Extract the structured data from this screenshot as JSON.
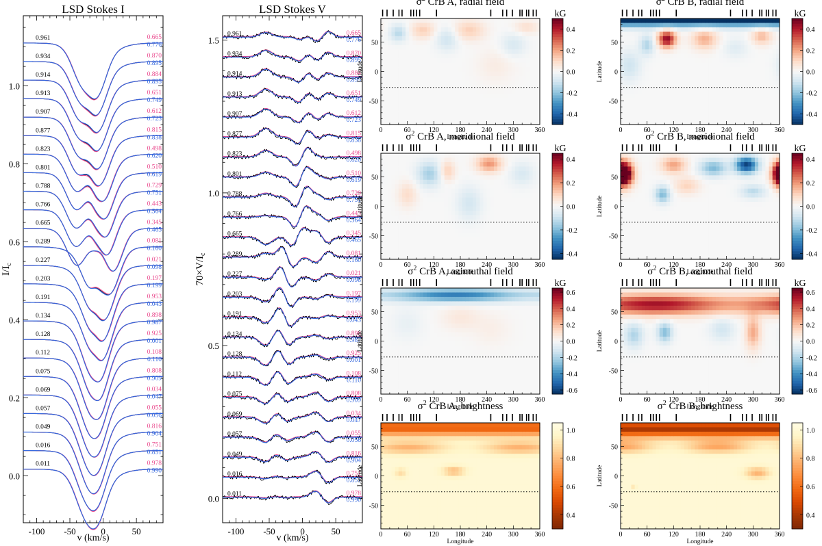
{
  "figure": {
    "description_free": true
  },
  "chart_data": [
    {
      "id": "stokes_i",
      "type": "line",
      "title": "LSD Stokes I",
      "xlabel": "v (km/s)",
      "ylabel": "I/I",
      "ylabel_sub": "c",
      "xlim": [
        -120,
        90
      ],
      "ylim": [
        -0.12,
        1.18
      ],
      "xticks": [
        -100,
        -50,
        0,
        50
      ],
      "yticks": [
        0.0,
        0.2,
        0.4,
        0.6,
        0.8,
        1.0
      ],
      "ytick_labels": [
        "0.0",
        "0.2",
        "0.4",
        "0.6",
        "0.8",
        "1.0"
      ],
      "series_colors": {
        "observed": "#000000",
        "model_a": "#ea4a8e",
        "model_b": "#3366dd"
      }
    },
    {
      "id": "stokes_v",
      "type": "line",
      "title": "LSD Stokes V",
      "xlabel": "v (km/s)",
      "ylabel": "70×V/I",
      "ylabel_sub": "c",
      "xlim": [
        -120,
        90
      ],
      "ylim": [
        -0.08,
        1.58
      ],
      "xticks": [
        -100,
        -50,
        0,
        50
      ],
      "yticks": [
        0.0,
        0.5,
        1.0,
        1.5
      ],
      "ytick_labels": [
        "0.0",
        "0.5",
        "1.0",
        "1.5"
      ]
    }
  ],
  "phases": {
    "left": [
      "0.961",
      "0.934",
      "0.914",
      "0.913",
      "0.907",
      "0.877",
      "0.823",
      "0.801",
      "0.788",
      "0.766",
      "0.665",
      "0.289",
      "0.227",
      "0.203",
      "0.191",
      "0.134",
      "0.128",
      "0.112",
      "0.075",
      "0.069",
      "0.057",
      "0.049",
      "0.016",
      "0.011"
    ],
    "pink": [
      "0.665",
      "0.870",
      "0.884",
      "0.651",
      "0.612",
      "0.815",
      "0.498",
      "0.510",
      "0.729",
      "0.443",
      "0.345",
      "0.081",
      "0.021",
      "0.197",
      "0.953",
      "0.898",
      "0.925",
      "0.108",
      "0.808",
      "0.034",
      "0.055",
      "0.816",
      "0.751",
      "0.978"
    ],
    "blue": [
      "0.776",
      "0.895",
      "0.895",
      "0.749",
      "0.723",
      "0.838",
      "0.620",
      "0.619",
      "0.751",
      "0.564",
      "0.465",
      "0.160",
      "0.098",
      "0.199",
      "0.043",
      "0.987",
      "0.001",
      "0.110",
      "0.909",
      "0.047",
      "0.056",
      "0.904",
      "0.851",
      "0.990"
    ]
  },
  "maps": [
    {
      "id": "a_radial",
      "title_star": "CrB A, radial field",
      "unit": "kG",
      "cbar": [
        -0.5,
        0.5
      ],
      "cbar_ticks": [
        "-0.4",
        "-0.2",
        "0.0",
        "0.2",
        "0.4"
      ],
      "cbar_vals": [
        -0.4,
        -0.2,
        0.0,
        0.2,
        0.4
      ],
      "cmap": "rdbu"
    },
    {
      "id": "b_radial",
      "title_star": "CrB B, radial field",
      "unit": "kG",
      "cbar": [
        -0.5,
        0.5
      ],
      "cbar_ticks": [
        "-0.4",
        "-0.2",
        "0.0",
        "0.2",
        "0.4"
      ],
      "cbar_vals": [
        -0.4,
        -0.2,
        0.0,
        0.2,
        0.4
      ],
      "cmap": "rdbu"
    },
    {
      "id": "a_meridional",
      "title_star": "CrB A, meridional field",
      "unit": "kG",
      "cbar": [
        -0.45,
        0.45
      ],
      "cbar_ticks": [
        "-0.4",
        "-0.2",
        "0.0",
        "0.2",
        "0.4"
      ],
      "cbar_vals": [
        -0.4,
        -0.2,
        0.0,
        0.2,
        0.4
      ],
      "cmap": "rdbu"
    },
    {
      "id": "b_meridional",
      "title_star": "CrB B, meridional field",
      "unit": "kG",
      "cbar": [
        -0.45,
        0.45
      ],
      "cbar_ticks": [
        "-0.4",
        "-0.2",
        "0.0",
        "0.2",
        "0.4"
      ],
      "cbar_vals": [
        -0.4,
        -0.2,
        0.0,
        0.2,
        0.4
      ],
      "cmap": "rdbu"
    },
    {
      "id": "a_azimuthal",
      "title_star": "CrB A, azimuthal field",
      "unit": "kG",
      "cbar": [
        -0.65,
        0.65
      ],
      "cbar_ticks": [
        "-0.6",
        "-0.4",
        "-0.2",
        "0.0",
        "0.2",
        "0.4",
        "0.6"
      ],
      "cbar_vals": [
        -0.6,
        -0.4,
        -0.2,
        0.0,
        0.2,
        0.4,
        0.6
      ],
      "cmap": "rdbu"
    },
    {
      "id": "b_azimuthal",
      "title_star": "CrB B, azimuthal field",
      "unit": "kG",
      "cbar": [
        -0.65,
        0.65
      ],
      "cbar_ticks": [
        "-0.6",
        "-0.4",
        "-0.2",
        "0.0",
        "0.2",
        "0.4",
        "0.6"
      ],
      "cbar_vals": [
        -0.6,
        -0.4,
        -0.2,
        0.0,
        0.2,
        0.4,
        0.6
      ],
      "cmap": "rdbu"
    },
    {
      "id": "a_brightness",
      "title_star": "CrB A, brightness",
      "unit": "",
      "cbar": [
        0.3,
        1.05
      ],
      "cbar_ticks": [
        "0.4",
        "0.6",
        "0.8",
        "1.0"
      ],
      "cbar_vals": [
        0.4,
        0.6,
        0.8,
        1.0
      ],
      "cmap": "orange"
    },
    {
      "id": "b_brightness",
      "title_star": "CrB B, brightness",
      "unit": "",
      "cbar": [
        0.3,
        1.05
      ],
      "cbar_ticks": [
        "0.4",
        "0.6",
        "0.8",
        "1.0"
      ],
      "cbar_vals": [
        0.4,
        0.6,
        0.8,
        1.0
      ],
      "cmap": "orange"
    }
  ],
  "map_common": {
    "sigma": "σ",
    "sup": "2",
    "xlabel": "Longitude",
    "ylabel": "Latitude",
    "xlim": [
      0,
      360
    ],
    "ylim": [
      -90,
      90
    ],
    "xticks": [
      0,
      60,
      120,
      180,
      240,
      300,
      360
    ],
    "xtick_labels": [
      "0",
      "60",
      "120",
      "180",
      "240",
      "300",
      "360"
    ],
    "yticks": [
      -50,
      0,
      50
    ],
    "ytick_labels": [
      "-50",
      "0",
      "50"
    ],
    "obs_longitudes": [
      4,
      14,
      28,
      41,
      48,
      68,
      74,
      81,
      88,
      126,
      249,
      276,
      285,
      298,
      315,
      320,
      330,
      335,
      345,
      352
    ],
    "dotted_latitude": -27
  }
}
